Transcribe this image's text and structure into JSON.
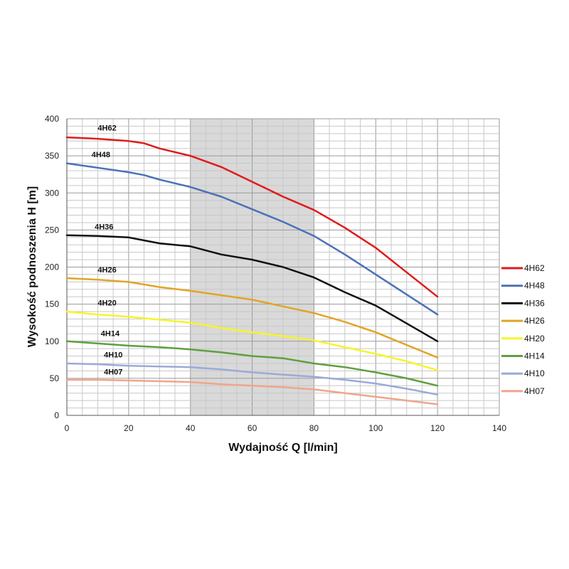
{
  "chart_data": {
    "type": "line",
    "title": "",
    "xlabel": "Wydajność Q [l/min]",
    "ylabel": "Wysokość podnoszenia H [m]",
    "xlim": [
      0,
      140
    ],
    "ylim": [
      0,
      400
    ],
    "xticks": [
      0,
      20,
      40,
      60,
      80,
      100,
      120,
      140
    ],
    "yticks": [
      0,
      50,
      100,
      150,
      200,
      250,
      300,
      350,
      400
    ],
    "grid": true,
    "legend": "right",
    "highlight_band": {
      "x": [
        40,
        80
      ],
      "color": "#d9d9d9"
    },
    "series": [
      {
        "name": "4H62",
        "color": "#e01b1b",
        "label_at": [
          10,
          384
        ],
        "x": [
          0,
          10,
          20,
          25,
          30,
          40,
          50,
          60,
          70,
          80,
          90,
          100,
          110,
          120
        ],
        "y": [
          375,
          373,
          370,
          367,
          360,
          350,
          335,
          315,
          295,
          277,
          253,
          226,
          193,
          160
        ]
      },
      {
        "name": "4H48",
        "color": "#4a72b8",
        "label_at": [
          8,
          348
        ],
        "x": [
          0,
          10,
          20,
          25,
          30,
          40,
          50,
          60,
          70,
          80,
          90,
          100,
          110,
          120
        ],
        "y": [
          340,
          334,
          328,
          324,
          318,
          308,
          295,
          278,
          261,
          242,
          217,
          190,
          163,
          136
        ]
      },
      {
        "name": "4H36",
        "color": "#111111",
        "label_at": [
          9,
          251
        ],
        "x": [
          0,
          10,
          20,
          25,
          30,
          40,
          50,
          60,
          70,
          80,
          90,
          100,
          110,
          120
        ],
        "y": [
          243,
          242,
          240,
          236,
          232,
          228,
          217,
          210,
          200,
          186,
          166,
          148,
          124,
          100
        ]
      },
      {
        "name": "4H26",
        "color": "#e0a526",
        "label_at": [
          10,
          193
        ],
        "x": [
          0,
          10,
          20,
          30,
          40,
          50,
          60,
          70,
          80,
          90,
          100,
          110,
          120
        ],
        "y": [
          185,
          183,
          180,
          173,
          168,
          162,
          156,
          147,
          138,
          126,
          112,
          95,
          78
        ]
      },
      {
        "name": "4H20",
        "color": "#f5f52a",
        "label_at": [
          10,
          148
        ],
        "x": [
          0,
          10,
          20,
          30,
          40,
          50,
          60,
          70,
          80,
          90,
          100,
          110,
          120
        ],
        "y": [
          140,
          136,
          133,
          129,
          125,
          118,
          112,
          107,
          101,
          92,
          83,
          73,
          61
        ]
      },
      {
        "name": "4H14",
        "color": "#5ea03f",
        "label_at": [
          11,
          107
        ],
        "x": [
          0,
          10,
          20,
          30,
          40,
          50,
          60,
          70,
          80,
          90,
          100,
          110,
          120
        ],
        "y": [
          100,
          97,
          94,
          92,
          89,
          85,
          80,
          77,
          70,
          65,
          58,
          50,
          40
        ]
      },
      {
        "name": "4H10",
        "color": "#9aaad8",
        "label_at": [
          12,
          78
        ],
        "x": [
          0,
          10,
          20,
          30,
          40,
          50,
          60,
          70,
          80,
          90,
          100,
          110,
          120
        ],
        "y": [
          70,
          69,
          67,
          66,
          65,
          62,
          58,
          55,
          52,
          48,
          43,
          36,
          28
        ]
      },
      {
        "name": "4H07",
        "color": "#f0a58a",
        "label_at": [
          12,
          55
        ],
        "x": [
          0,
          10,
          20,
          30,
          40,
          50,
          60,
          70,
          80,
          90,
          100,
          110,
          120
        ],
        "y": [
          48,
          48,
          47,
          46,
          45,
          42,
          40,
          38,
          35,
          30,
          25,
          20,
          15
        ]
      }
    ]
  }
}
